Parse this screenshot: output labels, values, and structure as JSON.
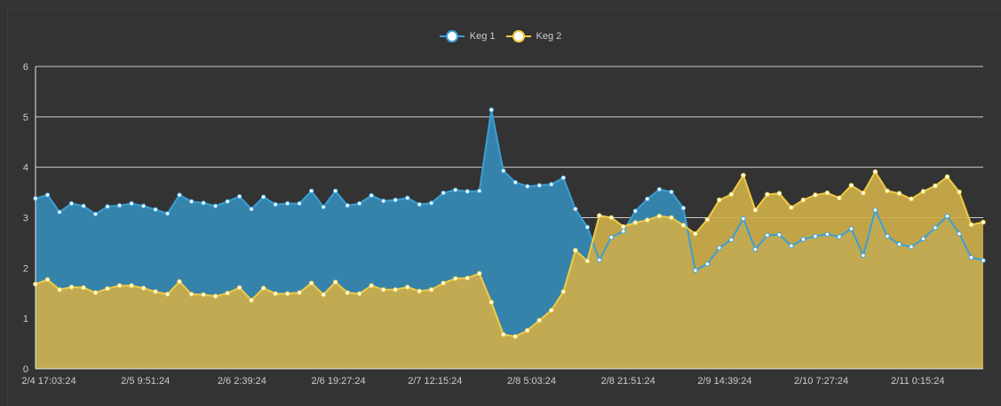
{
  "chart_data": {
    "type": "area",
    "title": "",
    "xlabel": "",
    "ylabel": "",
    "ylim": [
      0,
      6
    ],
    "y_ticks": [
      "0",
      "1",
      "2",
      "3",
      "4",
      "5",
      "6"
    ],
    "x_tick_labels": [
      "2/4 17:03:24",
      "2/5 9:51:24",
      "2/6 2:39:24",
      "2/6 19:27:24",
      "2/7 12:15:24",
      "2/8 5:03:24",
      "2/8 21:51:24",
      "2/9 14:39:24",
      "2/10 7:27:24",
      "2/11 0:15:24"
    ],
    "x_tick_index": [
      0,
      10,
      20,
      30,
      40,
      50,
      60,
      70,
      80,
      90
    ],
    "grid": true,
    "legend_position": "top-center",
    "series": [
      {
        "name": "Keg 1",
        "color": "#3a9fd6",
        "fill": "#3583ab",
        "values": [
          3.38,
          3.45,
          3.11,
          3.28,
          3.23,
          3.07,
          3.22,
          3.24,
          3.28,
          3.23,
          3.16,
          3.08,
          3.45,
          3.32,
          3.29,
          3.23,
          3.32,
          3.42,
          3.17,
          3.41,
          3.26,
          3.28,
          3.28,
          3.53,
          3.21,
          3.53,
          3.24,
          3.28,
          3.44,
          3.33,
          3.35,
          3.39,
          3.26,
          3.29,
          3.49,
          3.55,
          3.52,
          3.53,
          5.14,
          3.93,
          3.7,
          3.62,
          3.64,
          3.66,
          3.79,
          3.17,
          2.81,
          2.16,
          2.61,
          2.73,
          3.13,
          3.37,
          3.56,
          3.51,
          3.19,
          1.95,
          2.08,
          2.4,
          2.56,
          2.98,
          2.37,
          2.65,
          2.66,
          2.44,
          2.57,
          2.63,
          2.67,
          2.62,
          2.78,
          2.25,
          3.15,
          2.63,
          2.47,
          2.42,
          2.58,
          2.8,
          3.03,
          2.68,
          2.21,
          2.15
        ]
      },
      {
        "name": "Keg 2",
        "color": "#f0cc44",
        "fill": "#ccad4a",
        "values": [
          1.68,
          1.77,
          1.57,
          1.62,
          1.61,
          1.51,
          1.59,
          1.65,
          1.65,
          1.6,
          1.53,
          1.48,
          1.73,
          1.48,
          1.47,
          1.44,
          1.5,
          1.61,
          1.36,
          1.6,
          1.49,
          1.49,
          1.51,
          1.7,
          1.47,
          1.72,
          1.51,
          1.49,
          1.65,
          1.57,
          1.57,
          1.62,
          1.54,
          1.57,
          1.7,
          1.79,
          1.8,
          1.89,
          1.32,
          0.68,
          0.64,
          0.76,
          0.96,
          1.16,
          1.53,
          2.35,
          2.14,
          3.04,
          3.0,
          2.82,
          2.9,
          2.95,
          3.03,
          3.0,
          2.85,
          2.68,
          2.96,
          3.35,
          3.46,
          3.84,
          3.15,
          3.46,
          3.48,
          3.2,
          3.35,
          3.45,
          3.49,
          3.39,
          3.64,
          3.49,
          3.91,
          3.53,
          3.48,
          3.37,
          3.52,
          3.63,
          3.81,
          3.51,
          2.86,
          2.91
        ]
      }
    ]
  }
}
